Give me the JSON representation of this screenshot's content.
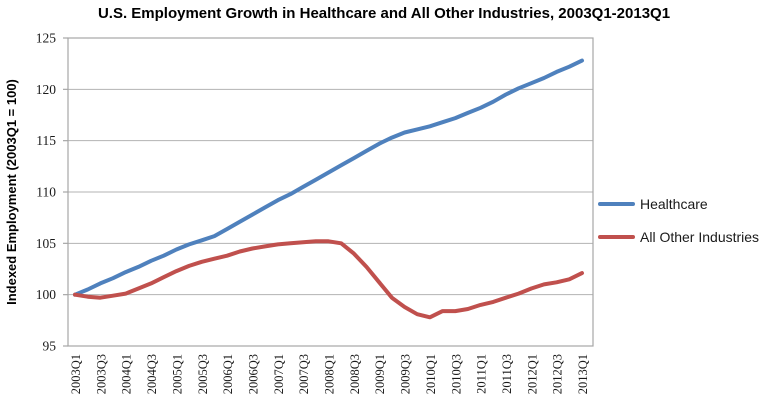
{
  "chart_data": {
    "type": "line",
    "title": "U.S. Employment Growth in Healthcare and All Other Industries, 2003Q1-2013Q1",
    "ylabel": "Indexed Employment (2003Q1 = 100)",
    "xlabel": "",
    "ylim": [
      95,
      125
    ],
    "ytick_step": 5,
    "grid": true,
    "legend_position": "right-middle",
    "x": [
      "2003Q1",
      "2003Q2",
      "2003Q3",
      "2003Q4",
      "2004Q1",
      "2004Q2",
      "2004Q3",
      "2004Q4",
      "2005Q1",
      "2005Q2",
      "2005Q3",
      "2005Q4",
      "2006Q1",
      "2006Q2",
      "2006Q3",
      "2006Q4",
      "2007Q1",
      "2007Q2",
      "2007Q3",
      "2007Q4",
      "2008Q1",
      "2008Q2",
      "2008Q3",
      "2008Q4",
      "2009Q1",
      "2009Q2",
      "2009Q3",
      "2009Q4",
      "2010Q1",
      "2010Q2",
      "2010Q3",
      "2010Q4",
      "2011Q1",
      "2011Q2",
      "2011Q3",
      "2011Q4",
      "2012Q1",
      "2012Q2",
      "2012Q3",
      "2012Q4",
      "2013Q1"
    ],
    "x_tick_labels_shown": [
      "2003Q1",
      "2003Q3",
      "2004Q1",
      "2004Q3",
      "2005Q1",
      "2005Q3",
      "2006Q1",
      "2006Q3",
      "2007Q1",
      "2007Q3",
      "2008Q1",
      "2008Q3",
      "2009Q1",
      "2009Q3",
      "2010Q1",
      "2010Q3",
      "2011Q1",
      "2011Q3",
      "2012Q1",
      "2012Q3",
      "2013Q1"
    ],
    "series": [
      {
        "name": "Healthcare",
        "color": "#4F81BD",
        "values": [
          100.0,
          100.5,
          101.1,
          101.6,
          102.2,
          102.7,
          103.3,
          103.8,
          104.4,
          104.9,
          105.3,
          105.7,
          106.4,
          107.1,
          107.8,
          108.5,
          109.2,
          109.8,
          110.5,
          111.2,
          111.9,
          112.6,
          113.3,
          114.0,
          114.7,
          115.3,
          115.8,
          116.1,
          116.4,
          116.8,
          117.2,
          117.7,
          118.2,
          118.8,
          119.5,
          120.1,
          120.6,
          121.1,
          121.7,
          122.2,
          122.8
        ]
      },
      {
        "name": "All Other Industries",
        "color": "#C0504D",
        "values": [
          100.0,
          99.8,
          99.7,
          99.9,
          100.1,
          100.6,
          101.1,
          101.7,
          102.3,
          102.8,
          103.2,
          103.5,
          103.8,
          104.2,
          104.5,
          104.7,
          104.9,
          105.0,
          105.1,
          105.2,
          105.2,
          105.0,
          104.0,
          102.7,
          101.2,
          99.7,
          98.8,
          98.1,
          97.8,
          98.4,
          98.4,
          98.6,
          99.0,
          99.3,
          99.7,
          100.1,
          100.6,
          101.0,
          101.2,
          101.5,
          102.1
        ]
      }
    ],
    "axis_color": "#a6a6a6",
    "gridline_color": "#b3b3b3",
    "tick_label_color": "#1a1a1a"
  }
}
